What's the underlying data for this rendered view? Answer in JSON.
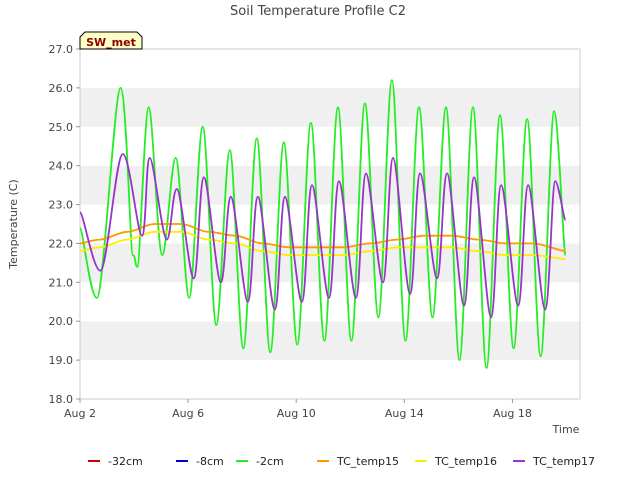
{
  "chart_data": {
    "type": "line",
    "title": "Soil Temperature Profile C2",
    "xlabel": "Time",
    "ylabel": "Temperature (C)",
    "ylim": [
      18.0,
      27.0
    ],
    "yticks": [
      "18.0",
      "19.0",
      "20.0",
      "21.0",
      "22.0",
      "23.0",
      "24.0",
      "25.0",
      "26.0",
      "27.0"
    ],
    "xlim": [
      "2025-08-02",
      "2025-08-20T12:00"
    ],
    "xticks": [
      "Aug 2",
      "Aug 6",
      "Aug 10",
      "Aug 14",
      "Aug 18"
    ],
    "grid": "horizontal bands",
    "legend_position": "bottom",
    "annotation": "SW_met",
    "series": [
      {
        "name": "-32cm",
        "color": "#cc0000",
        "points": []
      },
      {
        "name": "-8cm",
        "color": "#0000cc",
        "points": []
      },
      {
        "name": "-2cm",
        "color": "#22ee22",
        "points": [
          [
            "2025-08-02T00:00",
            22.4
          ],
          [
            "2025-08-02T15:00",
            20.6
          ],
          [
            "2025-08-03T12:00",
            26.0
          ],
          [
            "2025-08-03T23:00",
            21.7
          ],
          [
            "2025-08-04T03:00",
            21.4
          ],
          [
            "2025-08-04T13:00",
            25.5
          ],
          [
            "2025-08-05T01:00",
            21.7
          ],
          [
            "2025-08-05T13:00",
            24.2
          ],
          [
            "2025-08-06T01:00",
            20.6
          ],
          [
            "2025-08-06T13:00",
            25.0
          ],
          [
            "2025-08-07T01:00",
            19.9
          ],
          [
            "2025-08-07T13:00",
            24.4
          ],
          [
            "2025-08-08T01:00",
            19.3
          ],
          [
            "2025-08-08T13:00",
            24.7
          ],
          [
            "2025-08-09T01:00",
            19.2
          ],
          [
            "2025-08-09T13:00",
            24.6
          ],
          [
            "2025-08-10T01:00",
            19.4
          ],
          [
            "2025-08-10T13:00",
            25.1
          ],
          [
            "2025-08-11T01:00",
            19.5
          ],
          [
            "2025-08-11T13:00",
            25.5
          ],
          [
            "2025-08-12T01:00",
            19.5
          ],
          [
            "2025-08-12T13:00",
            25.6
          ],
          [
            "2025-08-13T01:00",
            20.1
          ],
          [
            "2025-08-13T13:00",
            26.2
          ],
          [
            "2025-08-14T01:00",
            19.5
          ],
          [
            "2025-08-14T13:00",
            25.5
          ],
          [
            "2025-08-15T01:00",
            20.1
          ],
          [
            "2025-08-15T13:00",
            25.5
          ],
          [
            "2025-08-16T01:00",
            19.0
          ],
          [
            "2025-08-16T13:00",
            25.5
          ],
          [
            "2025-08-17T01:00",
            18.8
          ],
          [
            "2025-08-17T13:00",
            25.3
          ],
          [
            "2025-08-18T01:00",
            19.3
          ],
          [
            "2025-08-18T13:00",
            25.2
          ],
          [
            "2025-08-19T01:00",
            19.1
          ],
          [
            "2025-08-19T13:00",
            25.4
          ],
          [
            "2025-08-19T23:00",
            21.7
          ]
        ]
      },
      {
        "name": "TC_temp15",
        "color": "#ff9900",
        "points": [
          [
            "2025-08-02T00:00",
            22.0
          ],
          [
            "2025-08-02T18:00",
            22.1
          ],
          [
            "2025-08-03T18:00",
            22.3
          ],
          [
            "2025-08-04T18:00",
            22.5
          ],
          [
            "2025-08-05T18:00",
            22.5
          ],
          [
            "2025-08-06T18:00",
            22.3
          ],
          [
            "2025-08-07T18:00",
            22.2
          ],
          [
            "2025-08-08T18:00",
            22.0
          ],
          [
            "2025-08-09T18:00",
            21.9
          ],
          [
            "2025-08-10T18:00",
            21.9
          ],
          [
            "2025-08-11T18:00",
            21.9
          ],
          [
            "2025-08-12T18:00",
            22.0
          ],
          [
            "2025-08-13T18:00",
            22.1
          ],
          [
            "2025-08-14T18:00",
            22.2
          ],
          [
            "2025-08-15T18:00",
            22.2
          ],
          [
            "2025-08-16T18:00",
            22.1
          ],
          [
            "2025-08-17T18:00",
            22.0
          ],
          [
            "2025-08-18T18:00",
            22.0
          ],
          [
            "2025-08-19T23:00",
            21.8
          ]
        ]
      },
      {
        "name": "TC_temp16",
        "color": "#ffee00",
        "points": [
          [
            "2025-08-02T00:00",
            21.8
          ],
          [
            "2025-08-02T18:00",
            21.9
          ],
          [
            "2025-08-03T18:00",
            22.1
          ],
          [
            "2025-08-04T18:00",
            22.3
          ],
          [
            "2025-08-05T18:00",
            22.3
          ],
          [
            "2025-08-06T18:00",
            22.1
          ],
          [
            "2025-08-07T18:00",
            22.0
          ],
          [
            "2025-08-08T18:00",
            21.8
          ],
          [
            "2025-08-09T18:00",
            21.7
          ],
          [
            "2025-08-10T18:00",
            21.7
          ],
          [
            "2025-08-11T18:00",
            21.7
          ],
          [
            "2025-08-12T18:00",
            21.8
          ],
          [
            "2025-08-13T18:00",
            21.9
          ],
          [
            "2025-08-14T18:00",
            21.9
          ],
          [
            "2025-08-15T18:00",
            21.9
          ],
          [
            "2025-08-16T18:00",
            21.8
          ],
          [
            "2025-08-17T18:00",
            21.7
          ],
          [
            "2025-08-18T18:00",
            21.7
          ],
          [
            "2025-08-19T23:00",
            21.6
          ]
        ]
      },
      {
        "name": "TC_temp17",
        "color": "#9933cc",
        "points": [
          [
            "2025-08-02T00:00",
            22.8
          ],
          [
            "2025-08-02T18:00",
            21.3
          ],
          [
            "2025-08-03T14:00",
            24.3
          ],
          [
            "2025-08-04T07:00",
            22.2
          ],
          [
            "2025-08-04T14:00",
            24.2
          ],
          [
            "2025-08-05T05:00",
            22.1
          ],
          [
            "2025-08-05T14:00",
            23.4
          ],
          [
            "2025-08-06T05:00",
            21.1
          ],
          [
            "2025-08-06T14:00",
            23.7
          ],
          [
            "2025-08-07T05:00",
            21.0
          ],
          [
            "2025-08-07T14:00",
            23.2
          ],
          [
            "2025-08-08T05:00",
            20.5
          ],
          [
            "2025-08-08T14:00",
            23.2
          ],
          [
            "2025-08-09T05:00",
            20.3
          ],
          [
            "2025-08-09T14:00",
            23.2
          ],
          [
            "2025-08-10T05:00",
            20.5
          ],
          [
            "2025-08-10T14:00",
            23.5
          ],
          [
            "2025-08-11T05:00",
            20.6
          ],
          [
            "2025-08-11T14:00",
            23.6
          ],
          [
            "2025-08-12T05:00",
            20.6
          ],
          [
            "2025-08-12T14:00",
            23.8
          ],
          [
            "2025-08-13T05:00",
            21.0
          ],
          [
            "2025-08-13T14:00",
            24.2
          ],
          [
            "2025-08-14T05:00",
            20.7
          ],
          [
            "2025-08-14T14:00",
            23.8
          ],
          [
            "2025-08-15T05:00",
            21.1
          ],
          [
            "2025-08-15T14:00",
            23.8
          ],
          [
            "2025-08-16T05:00",
            20.4
          ],
          [
            "2025-08-16T14:00",
            23.7
          ],
          [
            "2025-08-17T05:00",
            20.1
          ],
          [
            "2025-08-17T14:00",
            23.5
          ],
          [
            "2025-08-18T05:00",
            20.4
          ],
          [
            "2025-08-18T14:00",
            23.5
          ],
          [
            "2025-08-19T05:00",
            20.3
          ],
          [
            "2025-08-19T14:00",
            23.6
          ],
          [
            "2025-08-19T23:00",
            22.6
          ]
        ]
      }
    ]
  }
}
